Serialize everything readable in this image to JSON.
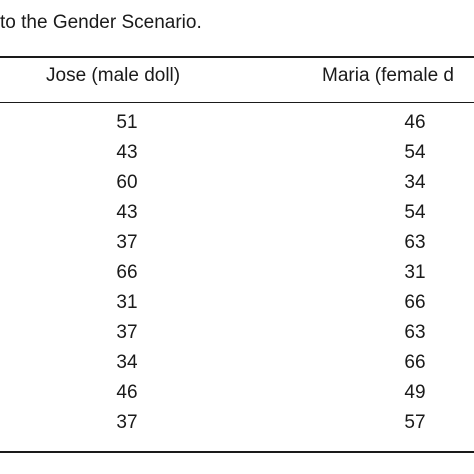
{
  "caption": "to the Gender Scenario.",
  "table": {
    "headers": [
      "Jose (male doll)",
      "Maria (female d"
    ],
    "rows": [
      [
        51,
        46
      ],
      [
        43,
        54
      ],
      [
        60,
        34
      ],
      [
        43,
        54
      ],
      [
        37,
        63
      ],
      [
        66,
        31
      ],
      [
        31,
        66
      ],
      [
        37,
        63
      ],
      [
        34,
        66
      ],
      [
        46,
        49
      ],
      [
        37,
        57
      ]
    ]
  }
}
